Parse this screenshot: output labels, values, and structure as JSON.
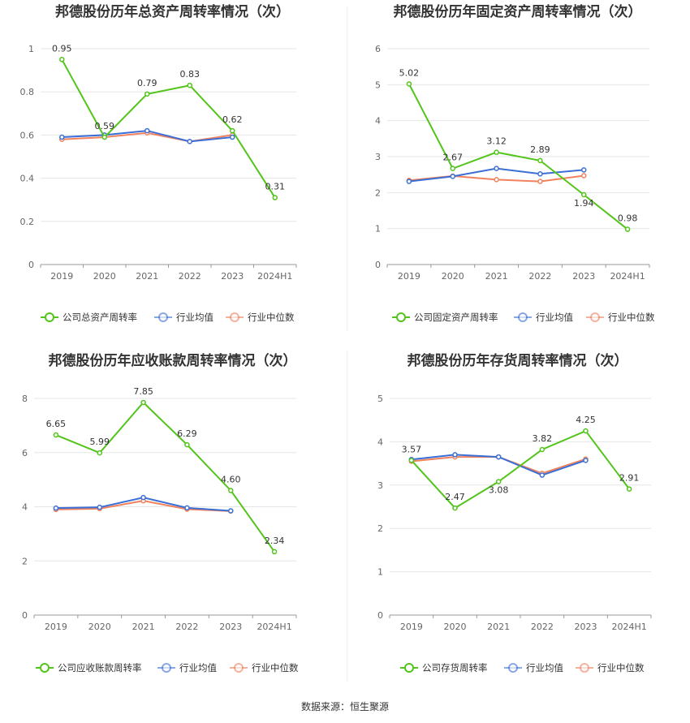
{
  "colors": {
    "company": "#52c41a",
    "avg": "#3b6fd6",
    "median": "#f0825e"
  },
  "source": "数据来源：恒生聚源",
  "chart_data": [
    {
      "type": "line",
      "title": "邦德股份历年总资产周转率情况（次）",
      "categories": [
        "2019",
        "2020",
        "2021",
        "2022",
        "2023",
        "2024H1"
      ],
      "ylim": [
        0,
        1
      ],
      "yticks": [
        "0",
        "0.2",
        "0.4",
        "0.6",
        "0.8",
        "1"
      ],
      "ytick_values": [
        0,
        0.2,
        0.4,
        0.6,
        0.8,
        1
      ],
      "grid": true,
      "legend_position": "bottom",
      "series": [
        {
          "name": "公司总资产周转率",
          "role": "company",
          "values": [
            0.95,
            0.59,
            0.79,
            0.83,
            0.62,
            0.31
          ],
          "labels": [
            "0.95",
            "0.59",
            "0.79",
            "0.83",
            "0.62",
            "0.31"
          ]
        },
        {
          "name": "行业均值",
          "role": "avg",
          "values": [
            0.59,
            0.6,
            0.62,
            0.57,
            0.59,
            null
          ]
        },
        {
          "name": "行业中位数",
          "role": "median",
          "values": [
            0.58,
            0.59,
            0.61,
            0.57,
            0.6,
            null
          ]
        }
      ]
    },
    {
      "type": "line",
      "title": "邦德股份历年固定资产周转率情况（次）",
      "categories": [
        "2019",
        "2020",
        "2021",
        "2022",
        "2023",
        "2024H1"
      ],
      "ylim": [
        0,
        6
      ],
      "yticks": [
        "0",
        "1",
        "2",
        "3",
        "4",
        "5",
        "6"
      ],
      "ytick_values": [
        0,
        1,
        2,
        3,
        4,
        5,
        6
      ],
      "grid": true,
      "legend_position": "bottom",
      "series": [
        {
          "name": "公司固定资产周转率",
          "role": "company",
          "values": [
            5.02,
            2.67,
            3.12,
            2.89,
            1.94,
            0.98
          ],
          "labels": [
            "5.02",
            "2.67",
            "3.12",
            "2.89",
            "1.94",
            "0.98"
          ]
        },
        {
          "name": "行业均值",
          "role": "avg",
          "values": [
            2.31,
            2.45,
            2.67,
            2.52,
            2.63,
            null
          ]
        },
        {
          "name": "行业中位数",
          "role": "median",
          "values": [
            2.34,
            2.46,
            2.36,
            2.31,
            2.47,
            null
          ]
        }
      ]
    },
    {
      "type": "line",
      "title": "邦德股份历年应收账款周转率情况（次）",
      "categories": [
        "2019",
        "2020",
        "2021",
        "2022",
        "2023",
        "2024H1"
      ],
      "ylim": [
        0,
        8
      ],
      "yticks": [
        "0",
        "2",
        "4",
        "6",
        "8"
      ],
      "ytick_values": [
        0,
        2,
        4,
        6,
        8
      ],
      "grid": true,
      "legend_position": "bottom",
      "series": [
        {
          "name": "公司应收账款周转率",
          "role": "company",
          "values": [
            6.65,
            5.99,
            7.85,
            6.29,
            4.6,
            2.34
          ],
          "labels": [
            "6.65",
            "5.99",
            "7.85",
            "6.29",
            "4.60",
            "2.34"
          ]
        },
        {
          "name": "行业均值",
          "role": "avg",
          "values": [
            3.95,
            3.98,
            4.34,
            3.96,
            3.85,
            null
          ]
        },
        {
          "name": "行业中位数",
          "role": "median",
          "values": [
            3.9,
            3.93,
            4.22,
            3.91,
            3.84,
            null
          ]
        }
      ]
    },
    {
      "type": "line",
      "title": "邦德股份历年存货周转率情况（次）",
      "categories": [
        "2019",
        "2020",
        "2021",
        "2022",
        "2023",
        "2024H1"
      ],
      "ylim": [
        0,
        5
      ],
      "yticks": [
        "0",
        "1",
        "2",
        "3",
        "4",
        "5"
      ],
      "ytick_values": [
        0,
        1,
        2,
        3,
        4,
        5
      ],
      "grid": true,
      "legend_position": "bottom",
      "series": [
        {
          "name": "公司存货周转率",
          "role": "company",
          "values": [
            3.57,
            2.47,
            3.08,
            3.82,
            4.25,
            2.91
          ],
          "labels": [
            "3.57",
            "2.47",
            "3.08",
            "3.82",
            "4.25",
            "2.91"
          ]
        },
        {
          "name": "行业均值",
          "role": "avg",
          "values": [
            3.59,
            3.7,
            3.65,
            3.23,
            3.57,
            null
          ]
        },
        {
          "name": "行业中位数",
          "role": "median",
          "values": [
            3.55,
            3.65,
            3.65,
            3.27,
            3.6,
            null
          ]
        }
      ]
    }
  ]
}
